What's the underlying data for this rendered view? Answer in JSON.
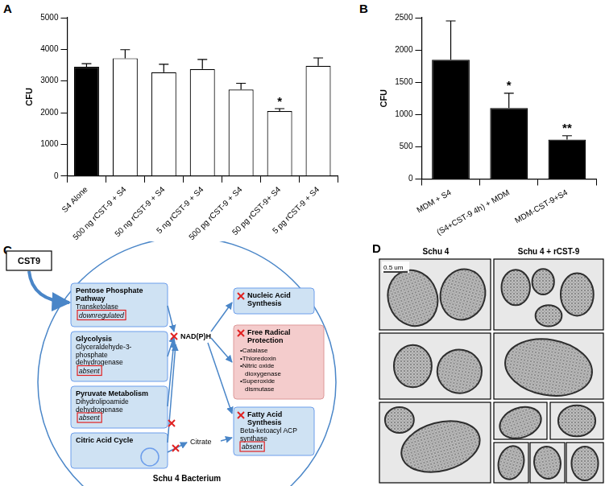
{
  "chart_data": [
    {
      "panel": "A",
      "type": "bar",
      "categories": [
        "S4 Alone",
        "500 ng rCST-9 + S4",
        "50 ng rCST-9 + S4",
        "5 ng rCST-9 + S4",
        "500 pg rCST-9 + S4",
        "50 pg rCST-9+ S4",
        "5 pg rCST-9 + S4"
      ],
      "values": [
        3450,
        3720,
        3280,
        3380,
        2730,
        2050,
        3480
      ],
      "errors": [
        100,
        270,
        250,
        300,
        200,
        80,
        250
      ],
      "colors": [
        "#000000",
        "#ffffff",
        "#ffffff",
        "#ffffff",
        "#ffffff",
        "#ffffff",
        "#ffffff"
      ],
      "ylabel": "CFU",
      "ylim": [
        0,
        5000
      ],
      "yticks": [
        0,
        1000,
        2000,
        3000,
        4000,
        5000
      ],
      "grid": false,
      "annotations": [
        {
          "category": "50 pg rCST-9+ S4",
          "text": "*"
        }
      ]
    },
    {
      "panel": "B",
      "type": "bar",
      "categories": [
        "MDM + S4",
        "(S4+CST-9 4h) + MDM",
        "MDM-CST-9+S4"
      ],
      "values": [
        1850,
        1100,
        610
      ],
      "errors": [
        600,
        230,
        60
      ],
      "colors": [
        "#000000",
        "#000000",
        "#000000"
      ],
      "ylabel": "CFU",
      "ylim": [
        0,
        2500
      ],
      "yticks": [
        0,
        500,
        1000,
        1500,
        2000,
        2500
      ],
      "grid": false,
      "annotations": [
        {
          "category": "(S4+CST-9 4h) + MDM",
          "text": "*"
        },
        {
          "category": "MDM-CST-9+S4",
          "text": "**"
        }
      ]
    }
  ],
  "diagram": {
    "panel": "C",
    "input": "CST9",
    "cell_label": "Schu 4 Bacterium",
    "pathways": [
      {
        "title": [
          "Pentose Phosphate",
          "Pathway"
        ],
        "enzyme": [
          "Transketolase"
        ],
        "status": "downregulated"
      },
      {
        "title": [
          "Glycolysis"
        ],
        "enzyme": [
          "Glyceraldehyde-3-",
          "phosphate",
          "dehydrogenase"
        ],
        "status": "absent"
      },
      {
        "title": [
          "Pyruvate Metabolism"
        ],
        "enzyme": [
          "Dihydrolipoamide",
          "dehydrogenase"
        ],
        "status": "absent"
      },
      {
        "title": [
          "Citric Acid Cycle"
        ]
      }
    ],
    "cofactor": "NAD(P)H",
    "intermediate": "Citrate",
    "outputs": [
      {
        "title": [
          "Nucleic Acid",
          "Synthesis"
        ]
      },
      {
        "title": [
          "Free Radical",
          "Protection"
        ],
        "items": [
          "•Catalase",
          "•Thioredoxin",
          "•Nitric oxide",
          "dioxygenase",
          "•Superoxide",
          "dismutase"
        ]
      },
      {
        "title": [
          "Fatty Acid",
          "Synthesis"
        ],
        "enzyme": [
          "Beta-ketoacyl ACP",
          "synthase"
        ],
        "status": "absent"
      }
    ]
  },
  "micrographs": {
    "panel": "D",
    "columns": [
      "Schu 4",
      "Schu 4 + rCST-9"
    ],
    "scale_bar": "0.5 um"
  }
}
